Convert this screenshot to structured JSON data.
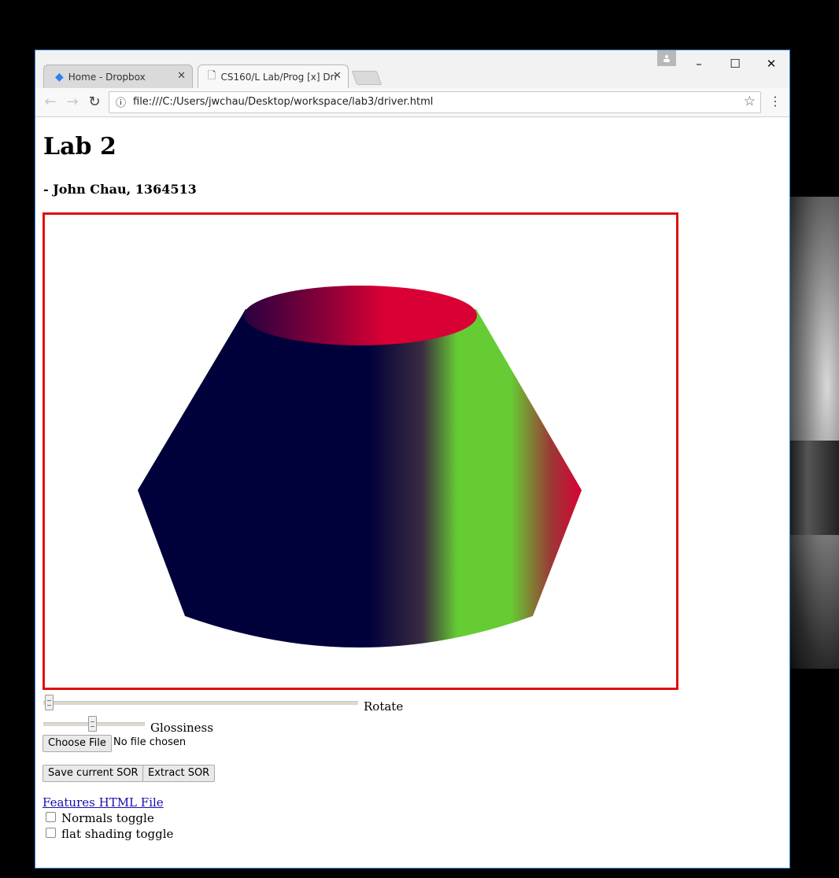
{
  "browser": {
    "tabs": [
      {
        "label": "Home - Dropbox",
        "icon": "dropbox-icon"
      },
      {
        "label": "CS160/L Lab/Prog [x] Dri",
        "icon": "page-icon"
      }
    ],
    "url": "file:///C:/Users/jwchau/Desktop/workspace/lab3/driver.html",
    "window_controls": {
      "minimize": "–",
      "maximize": "☐",
      "close": "✕"
    }
  },
  "page": {
    "title": "Lab 2",
    "author": "- John Chau, 1364513",
    "canvas": {
      "object": "surface-of-revolution",
      "colors": {
        "dark": "#00003a",
        "green": "#66cc33",
        "red": "#d80035",
        "border": "#e01010"
      }
    },
    "controls": {
      "rotate": {
        "label": "Rotate",
        "value": 0
      },
      "glossiness": {
        "label": "Glossiness",
        "value": 0.48
      },
      "choose_file": {
        "button": "Choose File",
        "status": "No file chosen"
      },
      "save_button": "Save current SOR",
      "extract_button": "Extract SOR",
      "features_link": "Features HTML File",
      "normals_toggle": "Normals toggle",
      "flat_shading_toggle": "flat shading toggle"
    }
  }
}
